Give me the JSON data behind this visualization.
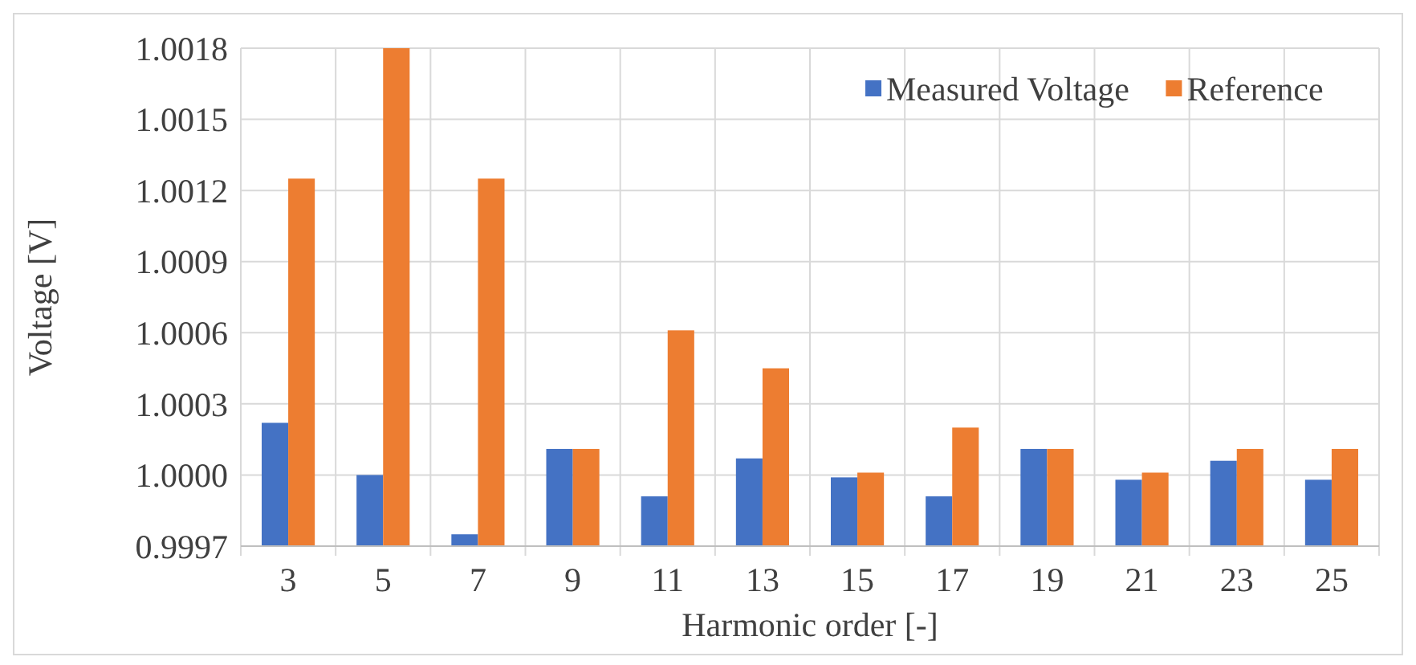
{
  "chart_data": {
    "type": "bar",
    "xlabel": "Harmonic order [-]",
    "ylabel": "Voltage [V]",
    "categories": [
      "3",
      "5",
      "7",
      "9",
      "11",
      "13",
      "15",
      "17",
      "19",
      "21",
      "23",
      "25"
    ],
    "series": [
      {
        "name": "Measured Voltage",
        "color": "#4472c4",
        "values": [
          1.00022,
          1.0,
          0.99975,
          1.00011,
          0.99991,
          1.00007,
          0.99999,
          0.99991,
          1.00011,
          0.99998,
          1.00006,
          0.99998
        ]
      },
      {
        "name": "Reference",
        "color": "#ed7d31",
        "values": [
          1.00125,
          1.0018,
          1.00125,
          1.00011,
          1.00061,
          1.00045,
          1.00001,
          1.0002,
          1.00011,
          1.00001,
          1.00011,
          1.00011
        ]
      }
    ],
    "ylim": [
      0.9997,
      1.0018
    ],
    "yticks": [
      {
        "value": 0.9997,
        "label": "0.9997"
      },
      {
        "value": 1.0,
        "label": "1.0000"
      },
      {
        "value": 1.0003,
        "label": "1.0003"
      },
      {
        "value": 1.0006,
        "label": "1.0006"
      },
      {
        "value": 1.0009,
        "label": "1.0009"
      },
      {
        "value": 1.0012,
        "label": "1.0012"
      },
      {
        "value": 1.0015,
        "label": "1.0015"
      },
      {
        "value": 1.0018,
        "label": "1.0018"
      }
    ],
    "grid": true,
    "legend": "top right"
  }
}
